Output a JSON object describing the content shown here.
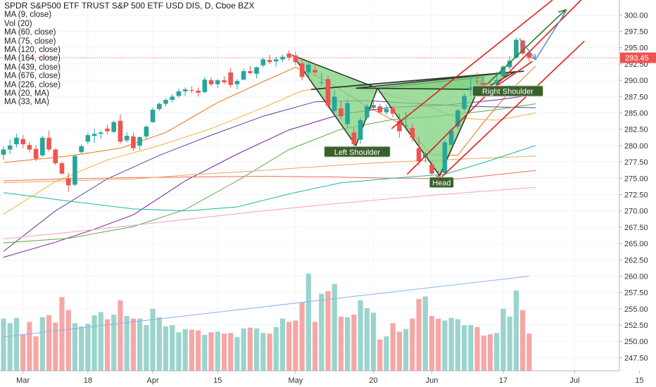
{
  "chart_data": {
    "type": "candlestick",
    "title": "SPDR S&P500 ETF TRUST S&P 500 ETF USD DIS, D, Cboe BZX",
    "indicators": [
      "MA (9, close)",
      "Vol (20)",
      "MA (60, close)",
      "MA (75, close)",
      "MA (120, close)",
      "MA (164, close)",
      "MA (439, close)",
      "MA (676, close)",
      "MA (226, close)",
      "MA (20, MA)",
      "MA (33, MA)"
    ],
    "y_axis": {
      "ylim": [
        245.5,
        302.3
      ],
      "ticks": [
        "300.00",
        "297.50",
        "295.00",
        "292.50",
        "290.00",
        "287.50",
        "285.00",
        "282.50",
        "280.00",
        "277.50",
        "275.00",
        "272.50",
        "270.00",
        "267.50",
        "265.00",
        "262.50",
        "260.00",
        "257.50",
        "255.00",
        "252.50",
        "250.00",
        "247.50"
      ]
    },
    "x_axis": {
      "ticks": [
        {
          "label": "Mar",
          "bar": 3
        },
        {
          "label": "18",
          "bar": 13
        },
        {
          "label": "Apr",
          "bar": 23
        },
        {
          "label": "15",
          "bar": 33
        },
        {
          "label": "May",
          "bar": 45
        },
        {
          "label": "20",
          "bar": 57
        },
        {
          "label": "Jun",
          "bar": 66
        },
        {
          "label": "17",
          "bar": 77
        },
        {
          "label": "Jul",
          "bar": 88
        },
        {
          "label": "15",
          "bar": 98
        }
      ]
    },
    "last_price": {
      "value": 293.45,
      "label": "293.45",
      "color": "#ef5350"
    },
    "colors": {
      "up": "#26a69a",
      "down": "#ef5350",
      "pattern_fill": "#7ed27e",
      "channel": "#e0201a",
      "arrow": "#2e7d32",
      "projection": "#5b8fd6"
    },
    "candles": [
      {
        "o": 278.6,
        "h": 279.9,
        "l": 277.8,
        "c": 279.4
      },
      {
        "o": 279.4,
        "h": 280.9,
        "l": 278.7,
        "c": 280.0
      },
      {
        "o": 280.2,
        "h": 281.8,
        "l": 279.7,
        "c": 281.2
      },
      {
        "o": 281.0,
        "h": 281.6,
        "l": 279.6,
        "c": 280.2
      },
      {
        "o": 280.1,
        "h": 280.6,
        "l": 278.9,
        "c": 279.4
      },
      {
        "o": 279.5,
        "h": 280.1,
        "l": 277.6,
        "c": 278.0
      },
      {
        "o": 278.5,
        "h": 281.5,
        "l": 278.3,
        "c": 281.2
      },
      {
        "o": 281.2,
        "h": 282.3,
        "l": 279.1,
        "c": 279.4
      },
      {
        "o": 279.4,
        "h": 279.6,
        "l": 277.0,
        "c": 277.3
      },
      {
        "o": 277.3,
        "h": 277.6,
        "l": 275.6,
        "c": 275.7
      },
      {
        "o": 275.0,
        "h": 275.8,
        "l": 272.9,
        "c": 273.9
      },
      {
        "o": 274.0,
        "h": 278.6,
        "l": 273.8,
        "c": 278.4
      },
      {
        "o": 279.0,
        "h": 280.2,
        "l": 278.8,
        "c": 279.9
      },
      {
        "o": 280.6,
        "h": 282.0,
        "l": 280.2,
        "c": 281.6
      },
      {
        "o": 281.5,
        "h": 282.6,
        "l": 280.4,
        "c": 281.8
      },
      {
        "o": 281.8,
        "h": 282.3,
        "l": 281.0,
        "c": 282.0
      },
      {
        "o": 282.6,
        "h": 283.2,
        "l": 281.7,
        "c": 282.2
      },
      {
        "o": 282.1,
        "h": 283.8,
        "l": 281.9,
        "c": 283.6
      },
      {
        "o": 283.8,
        "h": 284.8,
        "l": 280.3,
        "c": 280.6
      },
      {
        "o": 280.8,
        "h": 282.1,
        "l": 280.5,
        "c": 281.5
      },
      {
        "o": 281.4,
        "h": 282.0,
        "l": 279.2,
        "c": 279.6
      },
      {
        "o": 280.0,
        "h": 281.4,
        "l": 279.3,
        "c": 281.3
      },
      {
        "o": 281.4,
        "h": 283.1,
        "l": 281.0,
        "c": 282.9
      },
      {
        "o": 283.6,
        "h": 285.8,
        "l": 283.5,
        "c": 285.5
      },
      {
        "o": 285.6,
        "h": 286.6,
        "l": 285.3,
        "c": 286.4
      },
      {
        "o": 286.4,
        "h": 287.2,
        "l": 286.0,
        "c": 287.0
      },
      {
        "o": 287.0,
        "h": 287.9,
        "l": 286.6,
        "c": 287.5
      },
      {
        "o": 287.6,
        "h": 288.7,
        "l": 287.3,
        "c": 288.3
      },
      {
        "o": 288.3,
        "h": 288.9,
        "l": 287.6,
        "c": 288.6
      },
      {
        "o": 288.5,
        "h": 289.1,
        "l": 288.0,
        "c": 288.4
      },
      {
        "o": 288.4,
        "h": 288.9,
        "l": 287.5,
        "c": 288.1
      },
      {
        "o": 288.2,
        "h": 290.5,
        "l": 288.0,
        "c": 290.1
      },
      {
        "o": 290.0,
        "h": 290.5,
        "l": 289.1,
        "c": 289.4
      },
      {
        "o": 289.4,
        "h": 290.2,
        "l": 288.8,
        "c": 290.0
      },
      {
        "o": 290.0,
        "h": 290.6,
        "l": 289.4,
        "c": 289.7
      },
      {
        "o": 291.2,
        "h": 291.9,
        "l": 288.9,
        "c": 289.3
      },
      {
        "o": 289.4,
        "h": 290.2,
        "l": 288.6,
        "c": 289.9
      },
      {
        "o": 290.1,
        "h": 291.8,
        "l": 290.0,
        "c": 291.4
      },
      {
        "o": 291.4,
        "h": 292.2,
        "l": 290.9,
        "c": 291.1
      },
      {
        "o": 291.0,
        "h": 292.1,
        "l": 290.3,
        "c": 292.0
      },
      {
        "o": 292.3,
        "h": 293.5,
        "l": 292.0,
        "c": 293.2
      },
      {
        "o": 293.1,
        "h": 293.9,
        "l": 292.5,
        "c": 292.8
      },
      {
        "o": 292.9,
        "h": 293.6,
        "l": 292.1,
        "c": 293.2
      },
      {
        "o": 293.2,
        "h": 293.9,
        "l": 292.8,
        "c": 293.6
      },
      {
        "o": 294.1,
        "h": 294.6,
        "l": 293.0,
        "c": 293.5
      },
      {
        "o": 293.8,
        "h": 294.4,
        "l": 292.3,
        "c": 292.8
      },
      {
        "o": 292.6,
        "h": 293.5,
        "l": 290.0,
        "c": 290.5
      },
      {
        "o": 291.2,
        "h": 292.7,
        "l": 290.5,
        "c": 292.4
      },
      {
        "o": 291.6,
        "h": 292.6,
        "l": 290.8,
        "c": 291.2
      },
      {
        "o": 289.7,
        "h": 291.1,
        "l": 289.1,
        "c": 289.7
      },
      {
        "o": 290.2,
        "h": 290.7,
        "l": 285.8,
        "c": 286.1
      },
      {
        "o": 285.3,
        "h": 288.5,
        "l": 285.0,
        "c": 287.5
      },
      {
        "o": 285.7,
        "h": 286.9,
        "l": 284.0,
        "c": 284.5
      },
      {
        "o": 283.3,
        "h": 287.1,
        "l": 282.6,
        "c": 286.5
      },
      {
        "o": 282.0,
        "h": 282.8,
        "l": 279.9,
        "c": 280.2
      },
      {
        "o": 280.9,
        "h": 284.3,
        "l": 280.3,
        "c": 283.9
      },
      {
        "o": 284.3,
        "h": 286.4,
        "l": 284.0,
        "c": 286.0
      },
      {
        "o": 285.8,
        "h": 287.3,
        "l": 285.5,
        "c": 286.2
      },
      {
        "o": 286.0,
        "h": 286.4,
        "l": 284.9,
        "c": 285.1
      },
      {
        "o": 285.1,
        "h": 286.3,
        "l": 284.7,
        "c": 285.6
      },
      {
        "o": 285.7,
        "h": 286.1,
        "l": 284.3,
        "c": 284.9
      },
      {
        "o": 283.8,
        "h": 284.9,
        "l": 281.2,
        "c": 282.2
      },
      {
        "o": 283.0,
        "h": 285.2,
        "l": 282.7,
        "c": 283.1
      },
      {
        "o": 282.7,
        "h": 283.4,
        "l": 280.6,
        "c": 281.2
      },
      {
        "o": 279.6,
        "h": 281.4,
        "l": 276.9,
        "c": 277.6
      },
      {
        "o": 278.2,
        "h": 279.0,
        "l": 277.4,
        "c": 278.8
      },
      {
        "o": 277.1,
        "h": 277.6,
        "l": 275.4,
        "c": 275.7
      },
      {
        "o": 275.4,
        "h": 276.1,
        "l": 273.8,
        "c": 274.4
      },
      {
        "o": 275.8,
        "h": 280.9,
        "l": 275.6,
        "c": 280.5
      },
      {
        "o": 280.1,
        "h": 282.6,
        "l": 280.0,
        "c": 282.3
      },
      {
        "o": 282.9,
        "h": 285.6,
        "l": 282.6,
        "c": 285.4
      },
      {
        "o": 285.6,
        "h": 288.0,
        "l": 285.3,
        "c": 287.6
      },
      {
        "o": 288.5,
        "h": 290.9,
        "l": 287.6,
        "c": 288.9
      },
      {
        "o": 289.9,
        "h": 291.2,
        "l": 289.0,
        "c": 289.8
      },
      {
        "o": 289.6,
        "h": 290.1,
        "l": 288.9,
        "c": 289.2
      },
      {
        "o": 289.2,
        "h": 289.9,
        "l": 288.6,
        "c": 289.0
      },
      {
        "o": 289.4,
        "h": 291.3,
        "l": 289.2,
        "c": 290.0
      },
      {
        "o": 290.6,
        "h": 292.3,
        "l": 290.5,
        "c": 292.1
      },
      {
        "o": 292.0,
        "h": 293.7,
        "l": 291.6,
        "c": 293.0
      },
      {
        "o": 293.5,
        "h": 296.5,
        "l": 293.3,
        "c": 296.2
      },
      {
        "o": 296.1,
        "h": 296.2,
        "l": 293.9,
        "c": 294.1
      },
      {
        "o": 294.2,
        "h": 294.5,
        "l": 292.8,
        "c": 293.45
      }
    ],
    "volume": {
      "ylim": [
        245.5,
        302.3
      ],
      "values": [
        253.5,
        252.8,
        253.6,
        251.1,
        253.0,
        250.8,
        253.7,
        254.0,
        252.9,
        256.8,
        254.8,
        252.8,
        252.3,
        252.7,
        254.0,
        254.5,
        253.4,
        254.1,
        256.3,
        253.9,
        253.5,
        253.5,
        252.5,
        255.0,
        253.7,
        252.3,
        252.5,
        251.4,
        251.9,
        251.8,
        251.7,
        251.0,
        251.4,
        251.5,
        251.2,
        251.3,
        250.7,
        252.0,
        252.1,
        252.0,
        251.3,
        251.2,
        252.2,
        253.5,
        253.0,
        253.2,
        256.0,
        260.4,
        253.0,
        257.3,
        257.7,
        258.8,
        253.8,
        253.7,
        254.1,
        256.3,
        255.1,
        254.4,
        250.3,
        250.8,
        252.8,
        251.5,
        251.9,
        253.5,
        256.5,
        256.9,
        253.9,
        253.5,
        253.2,
        253.6,
        253.4,
        252.5,
        252.5,
        252.2,
        250.9,
        251.1,
        251.3,
        255.0,
        253.8,
        257.8,
        254.8,
        251.2
      ],
      "ma": [
        250.7,
        260.0
      ]
    },
    "moving_averages": [
      {
        "color": "#e8731d",
        "points": [
          [
            0,
            277.4
          ],
          [
            10,
            278.4
          ],
          [
            18,
            279.6
          ],
          [
            25,
            282.0
          ],
          [
            33,
            286.6
          ],
          [
            40,
            289.8
          ],
          [
            45,
            292.0
          ],
          [
            50,
            289.8
          ],
          [
            56,
            286.0
          ],
          [
            62,
            282.9
          ],
          [
            66,
            278.6
          ],
          [
            70,
            278.5
          ],
          [
            74,
            283.6
          ],
          [
            78,
            288.3
          ],
          [
            82,
            292.2
          ]
        ]
      },
      {
        "color": "#f4b13b",
        "points": [
          [
            0,
            269.5
          ],
          [
            8,
            274.5
          ],
          [
            16,
            277.8
          ],
          [
            24,
            280.0
          ],
          [
            32,
            282.6
          ],
          [
            40,
            285.8
          ],
          [
            46,
            288.4
          ],
          [
            52,
            289.1
          ],
          [
            58,
            288.1
          ],
          [
            64,
            286.6
          ],
          [
            70,
            284.2
          ],
          [
            76,
            283.9
          ],
          [
            82,
            285.0
          ]
        ]
      },
      {
        "color": "#5145a1",
        "points": [
          [
            0,
            263.8
          ],
          [
            8,
            270.0
          ],
          [
            16,
            274.9
          ],
          [
            24,
            278.5
          ],
          [
            32,
            281.6
          ],
          [
            40,
            284.5
          ],
          [
            48,
            286.7
          ],
          [
            56,
            286.9
          ],
          [
            64,
            286.4
          ],
          [
            72,
            286.0
          ],
          [
            82,
            285.8
          ]
        ]
      },
      {
        "color": "#7a1fa2",
        "points": [
          [
            0,
            262.9
          ],
          [
            8,
            265.2
          ],
          [
            14,
            267.2
          ],
          [
            20,
            269.4
          ],
          [
            28,
            274.6
          ],
          [
            36,
            278.7
          ],
          [
            44,
            282.4
          ],
          [
            52,
            284.8
          ],
          [
            60,
            285.9
          ],
          [
            68,
            286.2
          ],
          [
            76,
            287.0
          ],
          [
            82,
            287.8
          ]
        ]
      },
      {
        "color": "#5ca844",
        "points": [
          [
            0,
            265.1
          ],
          [
            10,
            265.8
          ],
          [
            20,
            267.6
          ],
          [
            28,
            270.2
          ],
          [
            36,
            274.6
          ],
          [
            44,
            279.4
          ],
          [
            52,
            282.5
          ],
          [
            60,
            284.0
          ],
          [
            68,
            284.6
          ],
          [
            76,
            285.5
          ],
          [
            82,
            286.4
          ]
        ]
      },
      {
        "color": "#f26a56",
        "points": [
          [
            0,
            274.6
          ],
          [
            10,
            274.9
          ],
          [
            20,
            275.1
          ],
          [
            30,
            275.2
          ],
          [
            40,
            275.3
          ],
          [
            50,
            275.2
          ],
          [
            60,
            275.0
          ],
          [
            70,
            274.9
          ],
          [
            82,
            276.2
          ]
        ]
      },
      {
        "color": "#f2a35b",
        "points": [
          [
            0,
            274.3
          ],
          [
            10,
            274.6
          ],
          [
            20,
            274.9
          ],
          [
            30,
            275.6
          ],
          [
            40,
            276.2
          ],
          [
            50,
            276.9
          ],
          [
            60,
            277.5
          ],
          [
            70,
            277.9
          ],
          [
            82,
            278.4
          ]
        ]
      },
      {
        "color": "#1fb79e",
        "points": [
          [
            0,
            272.8
          ],
          [
            10,
            271.5
          ],
          [
            20,
            270.3
          ],
          [
            28,
            270.0
          ],
          [
            36,
            270.6
          ],
          [
            44,
            272.6
          ],
          [
            52,
            274.3
          ],
          [
            60,
            275.0
          ],
          [
            68,
            275.6
          ],
          [
            74,
            277.4
          ],
          [
            82,
            280.0
          ]
        ]
      },
      {
        "color": "#f3a0bf",
        "points": [
          [
            0,
            265.7
          ],
          [
            10,
            266.7
          ],
          [
            20,
            267.8
          ],
          [
            30,
            268.9
          ],
          [
            40,
            270.0
          ],
          [
            50,
            271.0
          ],
          [
            60,
            271.9
          ],
          [
            70,
            272.7
          ],
          [
            82,
            273.6
          ]
        ]
      }
    ],
    "pattern": {
      "left_shoulder_label": "Left Shoulder",
      "head_label": "Head",
      "right_shoulder_label": "Right Shoulder",
      "label_color": "#3b5f2d",
      "left_triangle": [
        [
          44.6,
          293.8
        ],
        [
          54.3,
          280.0
        ],
        [
          57.6,
          288.8
        ]
      ],
      "head_triangle": [
        [
          57.6,
          288.8
        ],
        [
          67.2,
          275.4
        ],
        [
          74.0,
          290.5
        ]
      ],
      "shoulder_triangle": [
        [
          54.3,
          288.8
        ],
        [
          78.8,
          291.3
        ],
        [
          74.0,
          288.6
        ]
      ],
      "neckline": [
        [
          47.4,
          288.6
        ],
        [
          80.2,
          291.4
        ]
      ],
      "channel_lines": [
        [
          [
            59.8,
            282.6
          ],
          [
            84.6,
            302.3
          ]
        ],
        [
          [
            62.2,
            275.6
          ],
          [
            89.0,
            302.3
          ]
        ],
        [
          [
            67.1,
            274.8
          ],
          [
            89.5,
            296.0
          ]
        ],
        [
          [
            75.5,
            288.8
          ],
          [
            81.5,
            292.9
          ]
        ]
      ],
      "arrow": [
        [
          74.5,
          289.4
        ],
        [
          86.6,
          300.8
        ]
      ],
      "projection": [
        [
          79.5,
          296.4
        ],
        [
          82.0,
          293.2
        ],
        [
          86.8,
          300.8
        ]
      ],
      "labels_at": {
        "left": [
          54.5,
          279.0
        ],
        "head": [
          67.5,
          274.3
        ],
        "right": [
          77.7,
          288.3
        ]
      }
    }
  }
}
